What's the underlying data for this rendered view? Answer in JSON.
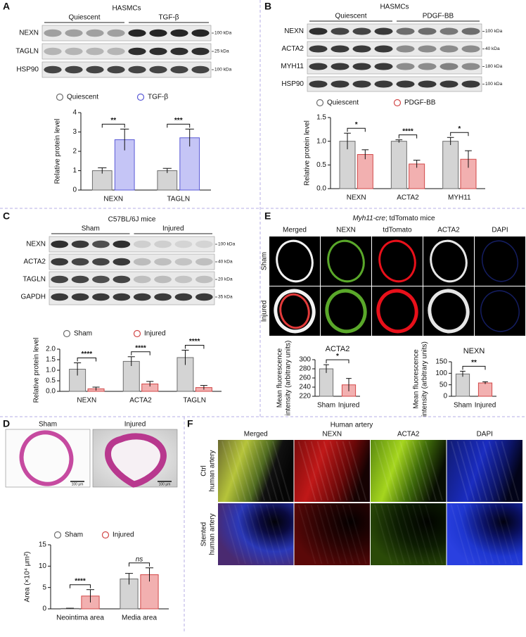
{
  "panels": {
    "letters": [
      "A",
      "B",
      "C",
      "D",
      "E",
      "F"
    ]
  },
  "blots": [
    {
      "title": "HASMCs",
      "groups": [
        "Quiescent",
        "TGF-β"
      ],
      "rows": [
        {
          "label": "NEXN",
          "marker": "100 kDa"
        },
        {
          "label": "TAGLN",
          "marker": "25 kDa"
        },
        {
          "label": "HSP90",
          "marker": "100 kDa"
        }
      ]
    },
    {
      "title": "HASMCs",
      "groups": [
        "Quiescent",
        "PDGF-BB"
      ],
      "rows": [
        {
          "label": "NEXN",
          "marker": "100 kDa"
        },
        {
          "label": "ACTA2",
          "marker": "40 kDa"
        },
        {
          "label": "MYH11",
          "marker": "180 kDa"
        },
        {
          "label": "HSP90",
          "marker": "100 kDa"
        }
      ]
    },
    {
      "title": "C57BL/6J mice",
      "groups": [
        "Sham",
        "Injured"
      ],
      "rows": [
        {
          "label": "NEXN",
          "marker": "100 kDa"
        },
        {
          "label": "ACTA2",
          "marker": "40 kDa"
        },
        {
          "label": "TAGLN",
          "marker": "20 kDa"
        },
        {
          "label": "GAPDH",
          "marker": "35 kDa"
        }
      ]
    }
  ],
  "histology": {
    "labels": [
      "Sham",
      "Injured"
    ],
    "scale_bar": "100 μm"
  },
  "fluorescence": {
    "title_italic": "Myh11-cre",
    "title_rest": "; tdTomato mice",
    "columns": [
      "Merged",
      "NEXN",
      "tdTomato",
      "ACTA2",
      "DAPI"
    ],
    "rows": [
      "Sham",
      "Injured"
    ]
  },
  "human": {
    "title": "Human artery",
    "columns": [
      "Merged",
      "NEXN",
      "ACTA2",
      "DAPI"
    ],
    "rows": [
      [
        "Ctrl",
        "human artery"
      ],
      [
        "Stented",
        "human artery"
      ]
    ]
  },
  "chart_data": [
    {
      "type": "bar",
      "ylabel": "Relative protein level",
      "categories": [
        "NEXN",
        "TAGLN"
      ],
      "series": [
        {
          "name": "Quiescent",
          "color": "#d4d4d4",
          "edgecolor": "#6e6e6e",
          "values": [
            1.0,
            1.0
          ],
          "errors": [
            0.15,
            0.12
          ]
        },
        {
          "name": "TGF-β",
          "color": "#c5c5f6",
          "edgecolor": "#5a5ad6",
          "values": [
            2.6,
            2.7
          ],
          "errors": [
            0.55,
            0.45
          ]
        }
      ],
      "ylim": [
        0,
        4
      ],
      "yticks": [
        0,
        1,
        2,
        3,
        4
      ],
      "annotations": [
        "**",
        "***"
      ]
    },
    {
      "type": "bar",
      "ylabel": "Relative protein level",
      "categories": [
        "NEXN",
        "ACTA2",
        "MYH11"
      ],
      "series": [
        {
          "name": "Quiescent",
          "color": "#d4d4d4",
          "edgecolor": "#6e6e6e",
          "values": [
            1.0,
            1.0,
            1.0
          ],
          "errors": [
            0.17,
            0.03,
            0.08
          ]
        },
        {
          "name": "PDGF-BB",
          "color": "#f2b0b0",
          "edgecolor": "#d24848",
          "values": [
            0.72,
            0.52,
            0.62
          ],
          "errors": [
            0.1,
            0.08,
            0.18
          ]
        }
      ],
      "ylim": [
        0,
        1.5
      ],
      "yticks": [
        {
          "value": 0,
          "label": "0.0"
        },
        0.5,
        {
          "value": 1,
          "label": "1.0"
        },
        1.5
      ],
      "annotations": [
        "*",
        "****",
        "*"
      ]
    },
    {
      "type": "bar",
      "ylabel": "Relative protein level",
      "categories": [
        "NEXN",
        "ACTA2",
        "TAGLN"
      ],
      "series": [
        {
          "name": "Sham",
          "color": "#d4d4d4",
          "edgecolor": "#6e6e6e",
          "values": [
            1.05,
            1.42,
            1.6
          ],
          "errors": [
            0.3,
            0.22,
            0.35
          ]
        },
        {
          "name": "Injured",
          "color": "#f2b0b0",
          "edgecolor": "#d24848",
          "values": [
            0.12,
            0.35,
            0.18
          ],
          "errors": [
            0.08,
            0.12,
            0.1
          ]
        }
      ],
      "ylim": [
        0,
        2
      ],
      "yticks": [
        {
          "value": 0,
          "label": "0.0"
        },
        0.5,
        {
          "value": 1,
          "label": "1.0"
        },
        1.5,
        {
          "value": 2,
          "label": "2.0"
        }
      ],
      "annotations": [
        "****",
        "****",
        "****"
      ]
    },
    {
      "type": "bar",
      "ylabel": "Area (×10⁴ μm²)",
      "categories": [
        "Neointima area",
        "Media area"
      ],
      "series": [
        {
          "name": "Sham",
          "color": "#d4d4d4",
          "edgecolor": "#6e6e6e",
          "values": [
            0.1,
            7.0
          ],
          "errors": [
            0.05,
            1.3
          ]
        },
        {
          "name": "Injured",
          "color": "#f2b0b0",
          "edgecolor": "#d24848",
          "values": [
            3.0,
            8.0
          ],
          "errors": [
            1.5,
            1.6
          ]
        }
      ],
      "ylim": [
        0,
        15
      ],
      "yticks": [
        0,
        5,
        10,
        15
      ],
      "annotations": [
        "****",
        "ns"
      ]
    },
    {
      "type": "bar",
      "title": "ACTA2",
      "ylabel": [
        "Mean fluorescence",
        "intensity (arbitrary units)"
      ],
      "categories": [
        "Sham",
        "Injured"
      ],
      "values": [
        280,
        245
      ],
      "errors": [
        9,
        14
      ],
      "colors": [
        "#d4d4d4",
        "#f2b0b0"
      ],
      "edgecolors": [
        "#6e6e6e",
        "#d24848"
      ],
      "ylim": [
        220,
        300
      ],
      "yticks": [
        220,
        240,
        260,
        280,
        300
      ],
      "annotation": "*"
    },
    {
      "type": "bar",
      "title": "NEXN",
      "ylabel": [
        "Mean fluorescence",
        "intensity (arbitrary units)"
      ],
      "categories": [
        "Sham",
        "Injured"
      ],
      "values": [
        97,
        58
      ],
      "errors": [
        12,
        5
      ],
      "colors": [
        "#d4d4d4",
        "#f2b0b0"
      ],
      "edgecolors": [
        "#6e6e6e",
        "#d24848"
      ],
      "ylim": [
        0,
        150
      ],
      "yticks": [
        0,
        50,
        100,
        150
      ],
      "annotation": "**"
    }
  ]
}
